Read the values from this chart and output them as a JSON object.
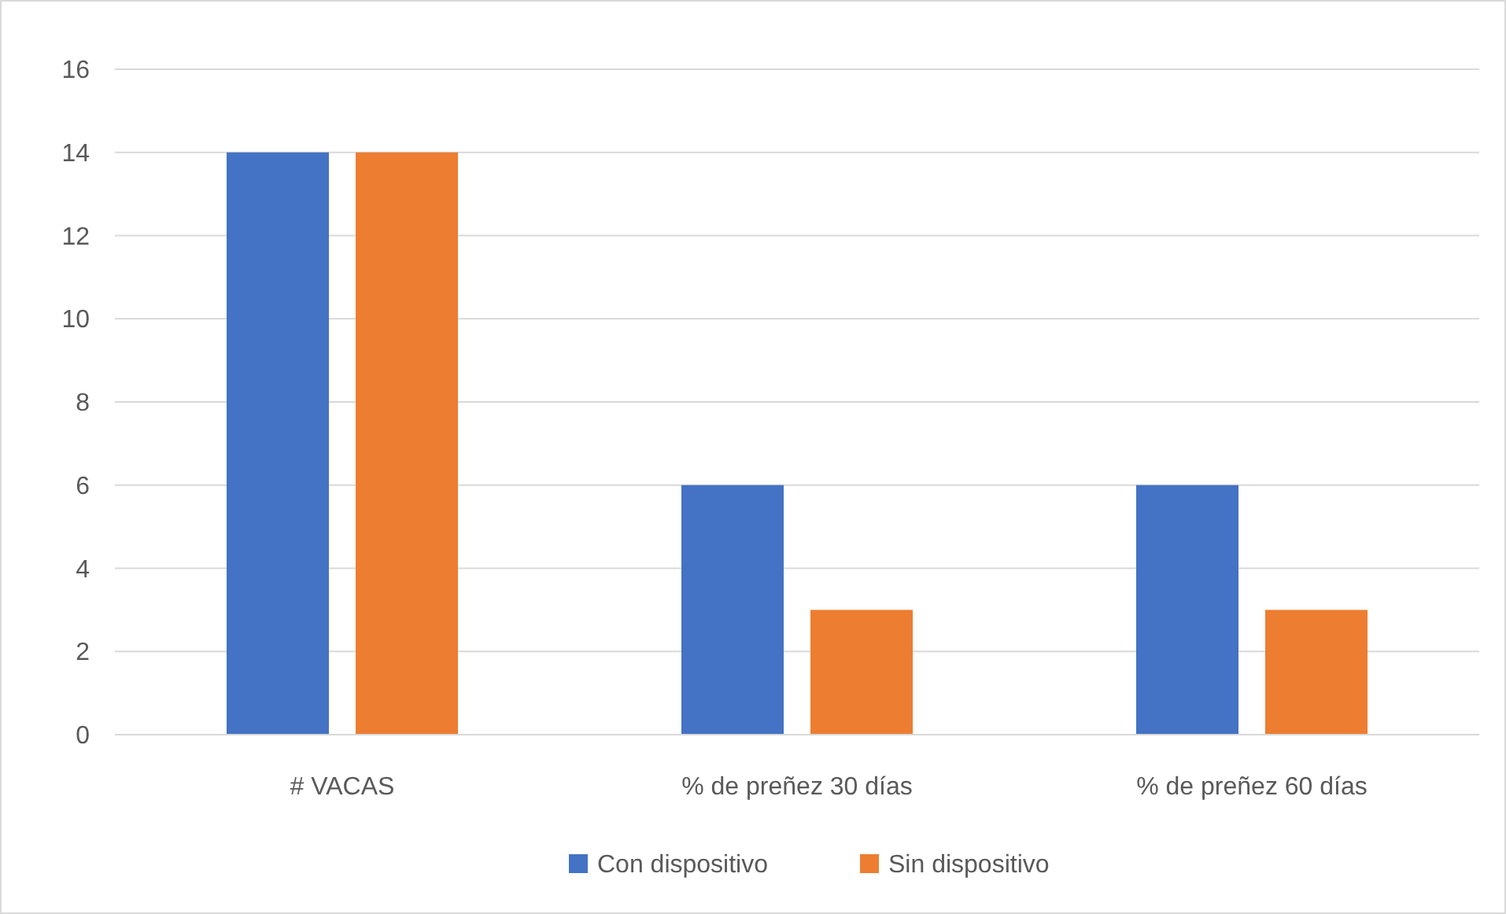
{
  "chart_data": {
    "type": "bar",
    "categories": [
      "# VACAS",
      "% de preñez 30 días",
      "% de preñez 60 días"
    ],
    "series": [
      {
        "name": "Con dispositivo",
        "color": "#4472c4",
        "values": [
          14,
          6,
          6
        ]
      },
      {
        "name": "Sin dispositivo",
        "color": "#ed7d31",
        "values": [
          14,
          3,
          3
        ]
      }
    ],
    "ylim": [
      0,
      16
    ],
    "yticks": [
      0,
      2,
      4,
      6,
      8,
      10,
      12,
      14,
      16
    ],
    "grid": "y",
    "legend": "bottom"
  }
}
